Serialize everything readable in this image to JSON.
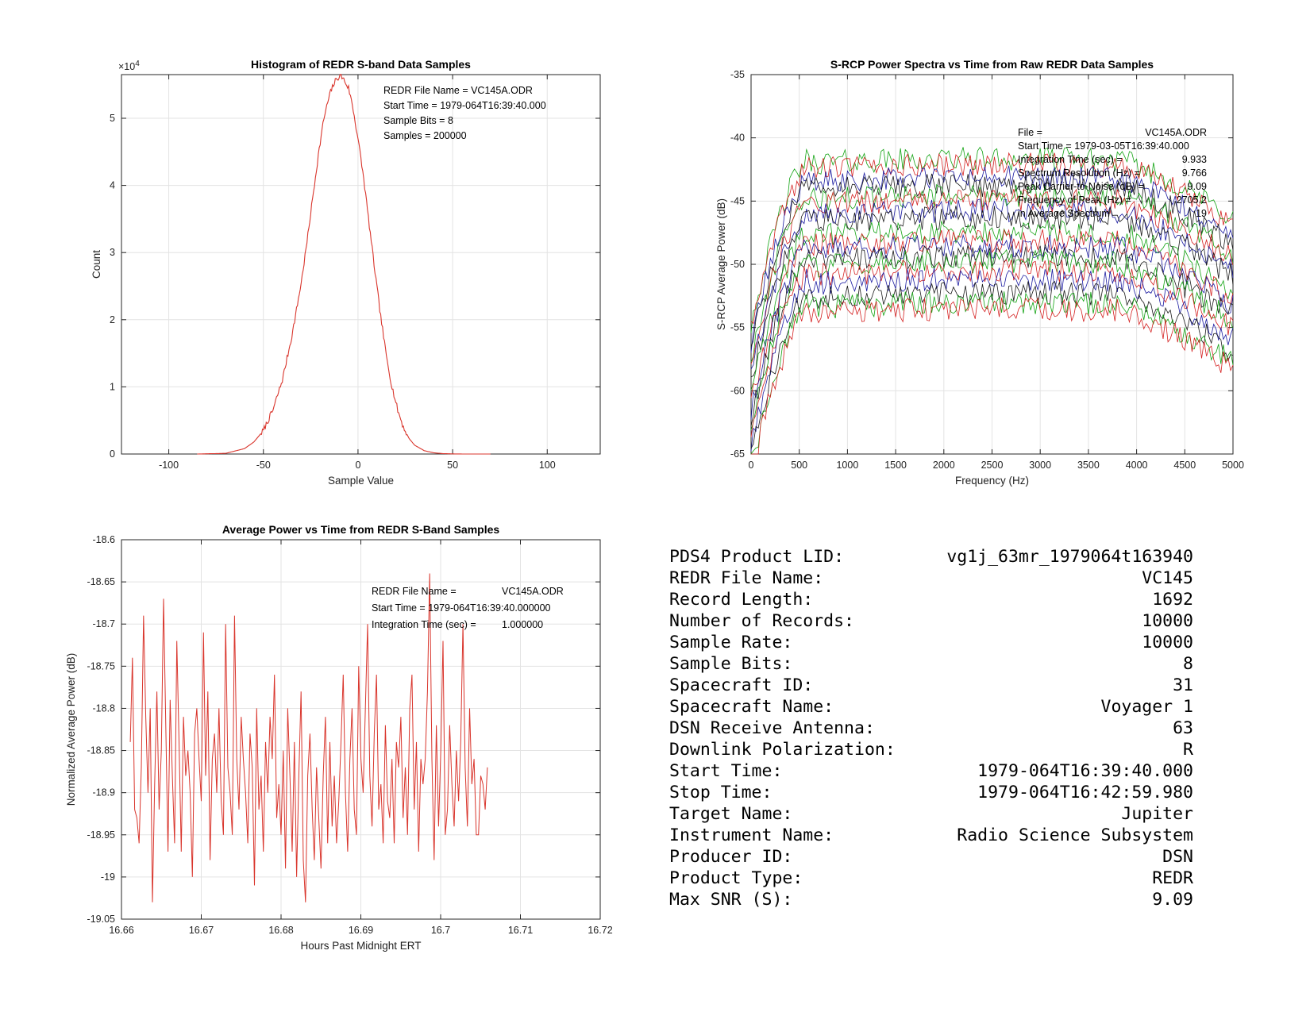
{
  "chart_data": [
    {
      "id": "histogram",
      "type": "line",
      "title": "Histogram of REDR S-band Data Samples",
      "xlabel": "Sample Value",
      "ylabel": "Count",
      "exponent_label": "×10",
      "exponent_power": "4",
      "xlim": [
        -125,
        128
      ],
      "ylim": [
        0,
        56500
      ],
      "xticks": [
        -100,
        -50,
        0,
        50,
        100
      ],
      "yticks": [
        0,
        10000,
        20000,
        30000,
        40000,
        50000
      ],
      "ytick_labels": [
        "0",
        "1",
        "2",
        "3",
        "4",
        "5"
      ],
      "grid": true,
      "color": "#d9352c",
      "x": [
        -85,
        -70,
        -60,
        -55,
        -50,
        -45,
        -40,
        -35,
        -30,
        -27,
        -24,
        -21,
        -18,
        -15,
        -13,
        -11,
        -9,
        -8,
        -7,
        -5,
        -3,
        0,
        3,
        6,
        9,
        12,
        15,
        18,
        21,
        24,
        27,
        30,
        35,
        40,
        45,
        50,
        55,
        60,
        70
      ],
      "values": [
        0,
        100,
        800,
        1800,
        3500,
        6500,
        11000,
        17500,
        25500,
        31500,
        38000,
        44500,
        50000,
        53500,
        55000,
        56000,
        56300,
        56000,
        55500,
        54500,
        52000,
        47000,
        41000,
        34000,
        27000,
        20500,
        14500,
        10000,
        6500,
        4000,
        2300,
        1300,
        500,
        180,
        60,
        20,
        5,
        0,
        0
      ],
      "annotations": [
        "REDR File Name = VC145A.ODR",
        "Start Time = 1979-064T16:39:40.000",
        "Sample Bits = 8",
        "Samples = 200000"
      ]
    },
    {
      "id": "spectra",
      "type": "line",
      "title": "S-RCP Power Spectra vs Time from Raw REDR Data Samples",
      "xlabel": "Frequency (Hz)",
      "ylabel": "S-RCP Average Power (dB)",
      "xlim": [
        0,
        5000
      ],
      "ylim": [
        -65,
        -35
      ],
      "xticks": [
        0,
        500,
        1000,
        1500,
        2000,
        2500,
        3000,
        3500,
        4000,
        4500,
        5000
      ],
      "yticks": [
        -65,
        -60,
        -55,
        -50,
        -45,
        -40,
        -35
      ],
      "grid": true,
      "series_colors": [
        "#12a312",
        "#d42020",
        "#1a1aa0",
        "#1a1a1a"
      ],
      "top_level": -41.5,
      "bottom_level": -53.5,
      "num_traces": 18,
      "annotations": [
        {
          "label": "File =",
          "value": "VC145A.ODR"
        },
        {
          "label": "Start Time = 1979-03-05T16:39:40.000",
          "value": ""
        },
        {
          "label": "Integration Time (sec) =",
          "value": "9.933"
        },
        {
          "label": "Spectrum Resolution (Hz) =",
          "value": "9.766"
        },
        {
          "label": "Peak Carrier-to-Noise (dB) =",
          "value": "9.09"
        },
        {
          "label": "  Frequency of Peak (Hz) =",
          "value": "2705.2"
        },
        {
          "label": "  in Average Spectrum",
          "value": "19"
        }
      ]
    },
    {
      "id": "power",
      "type": "line",
      "title": "Average Power vs Time from REDR S-Band Samples",
      "xlabel": "Hours Past Midnight ERT",
      "ylabel": "Normalized Average Power (dB)",
      "xlim": [
        16.66,
        16.72
      ],
      "ylim": [
        -19.05,
        -18.6
      ],
      "xticks": [
        16.66,
        16.67,
        16.68,
        16.69,
        16.7,
        16.71,
        16.72
      ],
      "xtick_labels": [
        "16.66",
        "16.67",
        "16.68",
        "16.69",
        "16.7",
        "16.71",
        "16.72"
      ],
      "yticks": [
        -19.05,
        -19,
        -18.95,
        -18.9,
        -18.85,
        -18.8,
        -18.75,
        -18.7,
        -18.65,
        -18.6
      ],
      "ytick_labels": [
        "-19.05",
        "-19",
        "-18.95",
        "-18.9",
        "-18.85",
        "-18.8",
        "-18.75",
        "-18.7",
        "-18.65",
        "-18.6"
      ],
      "grid": true,
      "color": "#d9352c",
      "x_start": 16.6611,
      "x_step": 0.000278,
      "values": [
        -18.84,
        -18.74,
        -18.92,
        -18.93,
        -18.96,
        -18.87,
        -18.69,
        -18.81,
        -18.9,
        -18.8,
        -19.03,
        -18.89,
        -18.78,
        -18.92,
        -18.85,
        -18.67,
        -18.82,
        -18.97,
        -18.79,
        -18.88,
        -18.96,
        -18.72,
        -18.84,
        -18.97,
        -18.81,
        -18.88,
        -18.85,
        -18.9,
        -19.0,
        -18.83,
        -18.8,
        -18.86,
        -18.91,
        -18.71,
        -18.88,
        -18.78,
        -18.98,
        -18.86,
        -18.83,
        -18.9,
        -18.8,
        -18.91,
        -18.95,
        -18.7,
        -18.87,
        -18.9,
        -18.95,
        -18.69,
        -18.86,
        -18.92,
        -18.81,
        -18.86,
        -18.9,
        -18.96,
        -18.83,
        -18.87,
        -19.01,
        -18.8,
        -18.92,
        -18.88,
        -18.97,
        -18.84,
        -18.9,
        -18.81,
        -18.86,
        -18.76,
        -18.93,
        -18.89,
        -18.95,
        -18.85,
        -18.99,
        -18.8,
        -18.88,
        -18.97,
        -18.84,
        -19.0,
        -18.88,
        -18.78,
        -18.98,
        -19.03,
        -18.88,
        -18.83,
        -18.92,
        -18.98,
        -18.87,
        -18.93,
        -18.99,
        -18.88,
        -18.81,
        -18.96,
        -18.84,
        -18.94,
        -18.88,
        -18.96,
        -18.91,
        -18.84,
        -18.76,
        -18.9,
        -18.97,
        -18.86,
        -18.8,
        -18.92,
        -18.95,
        -18.75,
        -18.86,
        -18.9,
        -18.8,
        -18.7,
        -18.88,
        -18.94,
        -18.83,
        -18.76,
        -18.92,
        -18.89,
        -18.96,
        -18.82,
        -18.91,
        -18.93,
        -18.86,
        -18.96,
        -18.84,
        -18.87,
        -18.81,
        -18.93,
        -18.87,
        -18.95,
        -18.8,
        -18.76,
        -18.92,
        -18.84,
        -18.97,
        -18.86,
        -18.89,
        -18.86,
        -18.78,
        -18.64,
        -18.86,
        -18.98,
        -18.82,
        -18.94,
        -18.85,
        -18.72,
        -18.95,
        -18.92,
        -18.82,
        -18.89,
        -18.94,
        -18.85,
        -18.91,
        -18.84,
        -18.7,
        -18.87,
        -18.94,
        -18.8,
        -18.89,
        -18.86,
        -18.95,
        -18.95,
        -18.88,
        -18.89,
        -18.92,
        -18.87
      ],
      "annotations": [
        {
          "label": "REDR File Name =",
          "value": "VC145A.ODR"
        },
        {
          "label": "Start Time = 1979-064T16:39:40.000000",
          "value": ""
        },
        {
          "label": "Integration Time (sec) =",
          "value": "1.000000"
        }
      ]
    }
  ],
  "info": [
    {
      "label": "PDS4 Product LID:",
      "value": "vg1j_63mr_1979064t163940"
    },
    {
      "label": "REDR File Name:",
      "value": "VC145"
    },
    {
      "label": "Record Length:",
      "value": "1692"
    },
    {
      "label": "Number of Records:",
      "value": "10000"
    },
    {
      "label": "Sample Rate:",
      "value": "10000"
    },
    {
      "label": "Sample Bits:",
      "value": "8"
    },
    {
      "label": "Spacecraft ID:",
      "value": "31"
    },
    {
      "label": "Spacecraft Name:",
      "value": "Voyager 1"
    },
    {
      "label": "DSN Receive Antenna:",
      "value": "63"
    },
    {
      "label": "Downlink Polarization:",
      "value": "R"
    },
    {
      "label": "Start Time:",
      "value": "1979-064T16:39:40.000"
    },
    {
      "label": "Stop Time:",
      "value": "1979-064T16:42:59.980"
    },
    {
      "label": "Target Name:",
      "value": "Jupiter"
    },
    {
      "label": "Instrument Name:",
      "value": "Radio Science Subsystem"
    },
    {
      "label": "Producer ID:",
      "value": "DSN"
    },
    {
      "label": "Product Type:",
      "value": "REDR"
    },
    {
      "label": "Max SNR (S):",
      "value": "9.09"
    }
  ]
}
